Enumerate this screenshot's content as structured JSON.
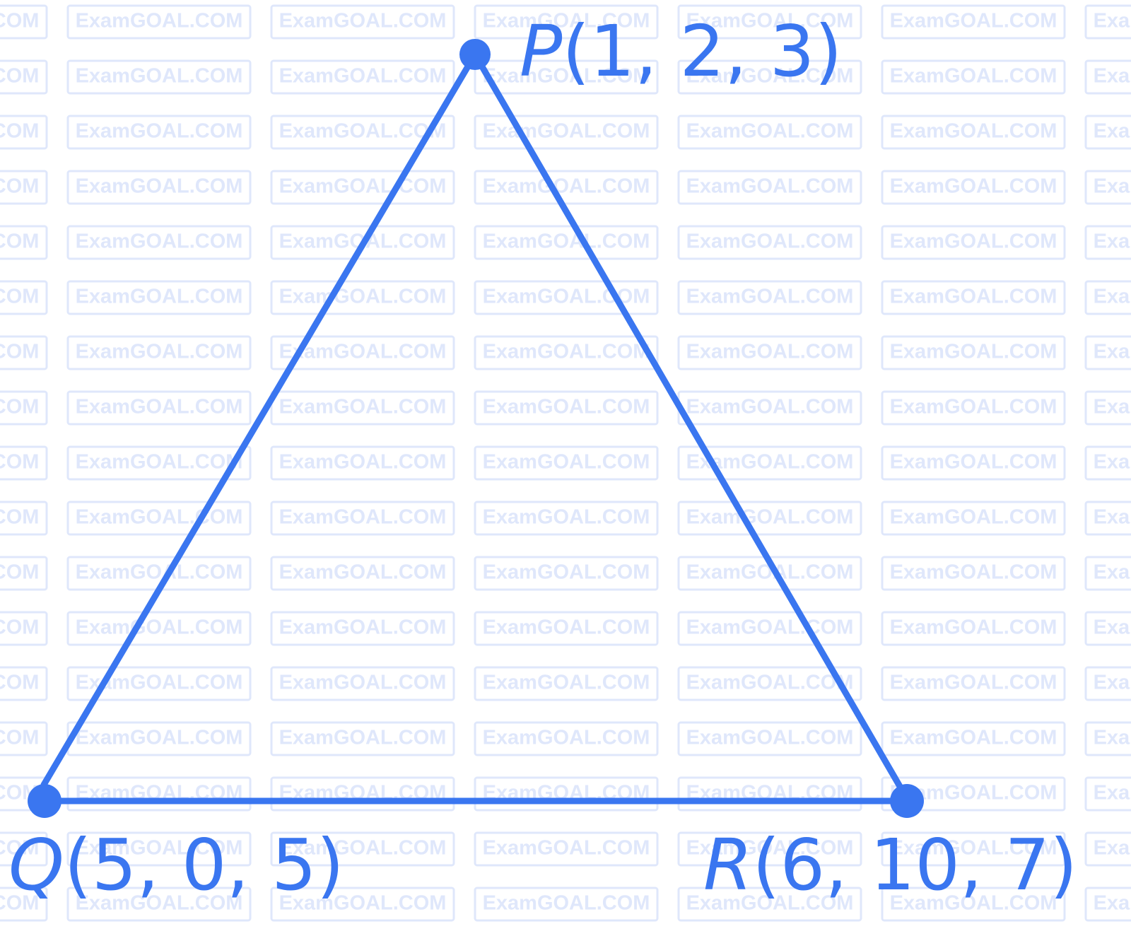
{
  "watermark": "ExamGOAL.COM",
  "nodes": [
    {
      "name": "P",
      "coords": "(1, 2, 3)"
    },
    {
      "name": "Q",
      "coords": "(5, 0, 5)"
    },
    {
      "name": "R",
      "coords": "(6, 10, 7)"
    }
  ]
}
